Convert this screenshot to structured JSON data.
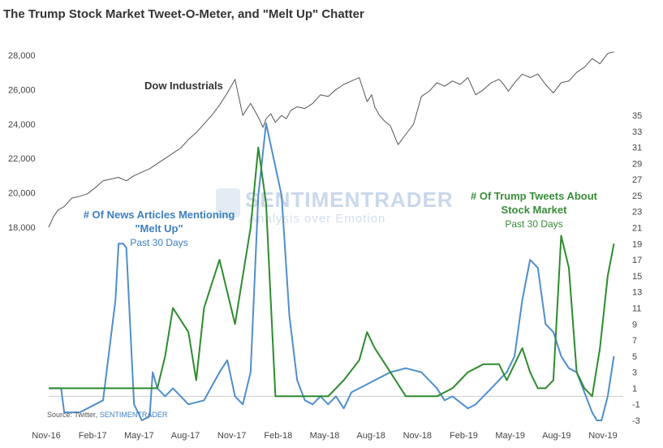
{
  "chart_data": {
    "type": "line",
    "title": "The Trump Stock Market Tweet-O-Meter, and \"Melt Up\" Chatter",
    "x_ticks": [
      "Nov-16",
      "Feb-17",
      "May-17",
      "Aug-17",
      "Nov-17",
      "Feb-18",
      "May-18",
      "Aug-18",
      "Nov-18",
      "Feb-19",
      "May-19",
      "Aug-19",
      "Nov-19"
    ],
    "left_axis": {
      "ticks": [
        18000,
        20000,
        22000,
        24000,
        26000,
        28000
      ]
    },
    "right_axis": {
      "ticks": [
        -3,
        -1,
        1,
        3,
        5,
        7,
        9,
        11,
        13,
        15,
        17,
        19,
        21,
        23,
        25,
        27,
        29,
        31,
        33,
        35
      ]
    },
    "x_range": [
      0,
      37
    ],
    "left_range": [
      16000,
      28600
    ],
    "right_range": [
      -3,
      35
    ],
    "series": [
      {
        "name": "Dow Industrials",
        "axis": "left",
        "color": "#555555",
        "x": [
          0.0,
          0.3,
          0.6,
          1.0,
          1.5,
          2.0,
          2.5,
          3.0,
          3.5,
          4.0,
          4.5,
          5.0,
          5.5,
          6.0,
          6.5,
          7.0,
          7.5,
          8.0,
          8.5,
          9.0,
          9.5,
          10.0,
          10.5,
          11.0,
          11.5,
          12.0,
          12.5,
          13.0,
          13.5,
          13.8,
          14.0,
          14.3,
          14.6,
          15.0,
          15.3,
          15.6,
          16.0,
          16.5,
          17.0,
          17.5,
          18.0,
          18.5,
          19.0,
          19.5,
          20.0,
          20.5,
          20.8,
          21.0,
          21.3,
          21.6,
          22.0,
          22.5,
          23.0,
          23.5,
          24.0,
          24.5,
          25.0,
          25.5,
          26.0,
          26.5,
          27.0,
          27.5,
          28.0,
          28.5,
          29.0,
          29.3,
          29.6,
          30.0,
          30.5,
          31.0,
          31.5,
          32.0,
          32.5,
          33.0,
          33.5,
          34.0,
          34.5,
          35.0,
          35.5,
          36.0,
          36.4
        ],
        "values": [
          18000,
          18600,
          19000,
          19200,
          19700,
          19800,
          19950,
          20300,
          20700,
          20800,
          20900,
          20700,
          21000,
          21200,
          21400,
          21700,
          22000,
          22300,
          22600,
          23100,
          23500,
          24000,
          24500,
          25100,
          25800,
          26600,
          24500,
          25200,
          24400,
          23800,
          24300,
          24600,
          24100,
          24500,
          24300,
          24800,
          25000,
          24900,
          25200,
          25700,
          25600,
          26000,
          26300,
          26500,
          26700,
          25300,
          25700,
          25000,
          24500,
          24200,
          23900,
          22800,
          23400,
          24000,
          25600,
          25900,
          26400,
          26200,
          26500,
          26300,
          26700,
          25700,
          26000,
          26400,
          26600,
          26300,
          25900,
          26400,
          26900,
          26700,
          26900,
          26300,
          25800,
          26400,
          26500,
          27000,
          27300,
          27800,
          27500,
          28100,
          28200
        ]
      },
      {
        "name": "# Of News Articles Mentioning \"Melt Up\" Past 30 Days",
        "axis": "right",
        "color": "#4f8ecb",
        "x": [
          0.0,
          0.8,
          1.0,
          2.0,
          2.5,
          3.5,
          4.3,
          4.5,
          4.8,
          5.0,
          5.5,
          6.0,
          6.5,
          6.7,
          7.0,
          7.5,
          8.0,
          9.0,
          10.0,
          11.0,
          11.5,
          12.0,
          12.5,
          13.0,
          13.5,
          14.0,
          15.0,
          15.5,
          16.0,
          16.5,
          17.0,
          17.5,
          18.0,
          18.5,
          19.0,
          19.5,
          20.0,
          20.5,
          21.0,
          22.0,
          23.0,
          24.0,
          25.0,
          25.5,
          26.0,
          27.0,
          27.5,
          28.0,
          28.5,
          29.0,
          29.5,
          30.0,
          30.5,
          31.0,
          31.5,
          32.0,
          32.5,
          33.0,
          33.5,
          34.0,
          35.0,
          35.3,
          35.6,
          36.0,
          36.4
        ],
        "values": [
          1.0,
          1.0,
          -2.0,
          -2.0,
          -1.5,
          -0.5,
          12.0,
          19.0,
          19.0,
          18.5,
          -1.0,
          -3.0,
          -2.5,
          3.0,
          1.0,
          0.0,
          1.0,
          -1.0,
          -0.5,
          3.0,
          4.5,
          0.0,
          -1.0,
          3.0,
          25.0,
          34.0,
          25.0,
          10.0,
          2.0,
          -0.5,
          -1.0,
          0.0,
          -1.0,
          0.0,
          -1.5,
          0.5,
          1.0,
          1.5,
          2.0,
          3.0,
          3.5,
          3.0,
          1.0,
          -0.5,
          0.0,
          -1.5,
          -1.0,
          0.0,
          1.0,
          2.0,
          3.0,
          5.0,
          12.0,
          17.0,
          16.0,
          9.0,
          8.0,
          5.0,
          3.5,
          3.0,
          -2.0,
          -3.0,
          -3.0,
          0.0,
          5.0
        ]
      },
      {
        "name": "# Of Trump Tweets About Stock Market Past 30 Days",
        "axis": "right",
        "color": "#2e8b2e",
        "x": [
          0.0,
          7.0,
          7.5,
          8.0,
          9.0,
          9.5,
          10.0,
          11.0,
          12.0,
          13.0,
          13.5,
          14.0,
          14.3,
          14.6,
          15.0,
          15.5,
          16.0,
          16.5,
          17.0,
          18.0,
          19.0,
          20.0,
          20.5,
          21.0,
          22.0,
          23.0,
          23.5,
          24.0,
          25.0,
          25.5,
          26.0,
          26.5,
          27.0,
          28.0,
          29.0,
          29.5,
          30.0,
          30.5,
          31.0,
          31.5,
          32.0,
          32.5,
          33.0,
          33.5,
          34.0,
          34.5,
          35.0,
          35.5,
          36.0,
          36.4
        ],
        "values": [
          1.0,
          1.0,
          5.0,
          11.0,
          8.0,
          2.0,
          11.0,
          17.0,
          9.0,
          21.0,
          31.0,
          24.0,
          12.0,
          0.0,
          0.0,
          0.0,
          0.0,
          0.0,
          0.0,
          0.0,
          2.0,
          4.5,
          8.0,
          6.0,
          3.0,
          0.0,
          0.0,
          0.0,
          0.0,
          0.5,
          1.0,
          2.0,
          3.0,
          4.0,
          4.0,
          2.0,
          4.0,
          6.0,
          3.0,
          1.0,
          1.0,
          2.0,
          20.0,
          16.0,
          3.0,
          1.0,
          0.0,
          6.0,
          15.0,
          19.0
        ]
      }
    ],
    "annotations": {
      "dow_label": "Dow Industrials",
      "news_label_line1": "# Of News Articles Mentioning",
      "news_label_line2": "\"Melt Up\"",
      "news_label_line3": "Past 30 Days",
      "tweets_label_line1": "# Of Trump Tweets About",
      "tweets_label_line2": "Stock Market",
      "tweets_label_line3": "Past 30 Days"
    },
    "source_prefix": "Source: Twitter,",
    "source_brand": "SENTIMENTRADER",
    "watermark": {
      "main": "SENTIMENTRADER",
      "sub": "Analysis over Emotion"
    },
    "grid": false,
    "legend": "none"
  }
}
